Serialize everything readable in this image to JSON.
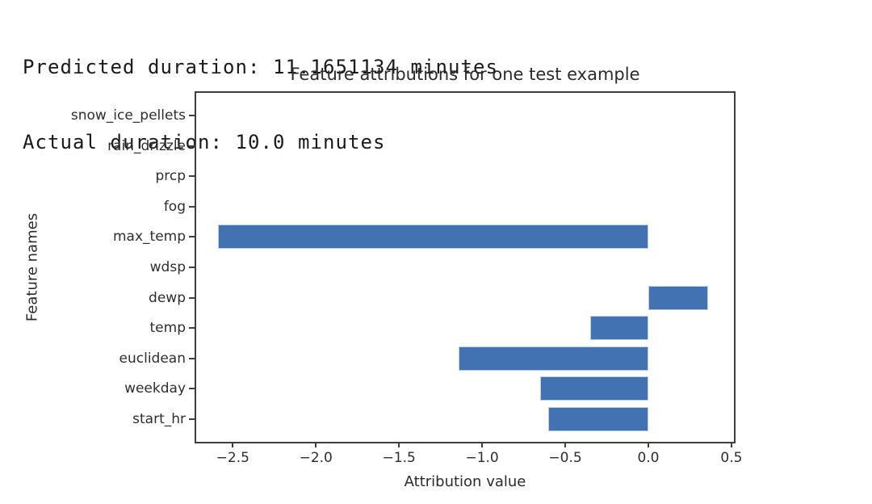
{
  "output_text": {
    "line1": "Predicted duration: 11.1651134 minutes",
    "line2": "Actual duration: 10.0 minutes"
  },
  "chart_data": {
    "type": "bar",
    "orientation": "horizontal",
    "title": "Feature attributions for one test example",
    "xlabel": "Attribution value",
    "ylabel": "Feature names",
    "categories": [
      "snow_ice_pellets",
      "rain_drizzle",
      "prcp",
      "fog",
      "max_temp",
      "wdsp",
      "dewp",
      "temp",
      "euclidean",
      "weekday",
      "start_hr"
    ],
    "values": [
      0,
      0,
      0,
      0,
      -2.59,
      0,
      0.36,
      -0.35,
      -1.14,
      -0.65,
      -0.6
    ],
    "xlim": [
      -2.72,
      0.515
    ],
    "xticks": [
      -2.5,
      -2.0,
      -1.5,
      -1.0,
      -0.5,
      0.0,
      0.5
    ],
    "grid": false,
    "legend": "none",
    "bar_color": "#4272b1",
    "bar_edge_color": "#bccfe7",
    "axis_color": "#3f3f3f"
  }
}
